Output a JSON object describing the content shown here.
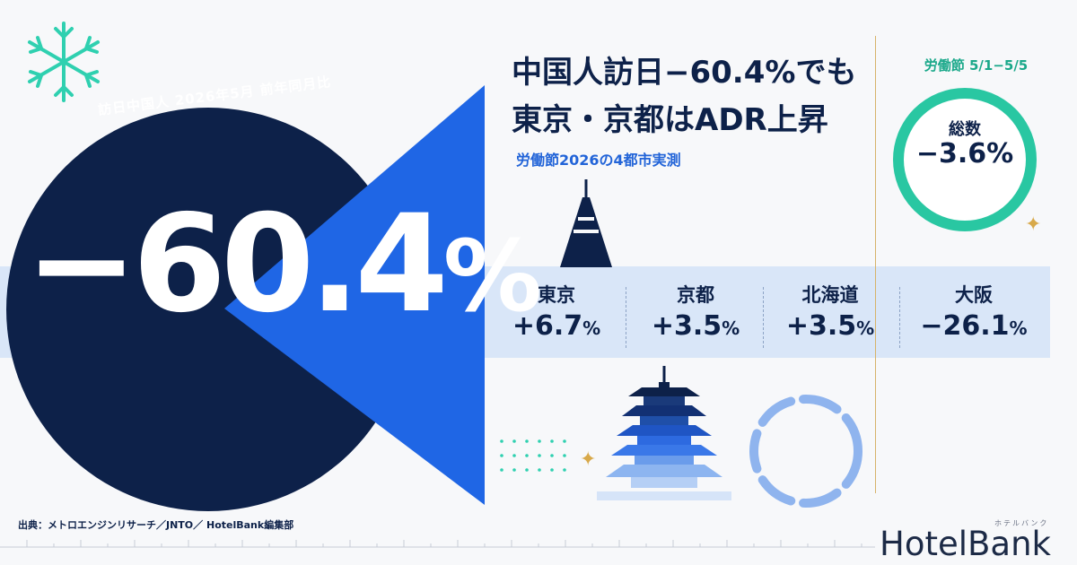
{
  "main": {
    "label": "訪日中国人 2026年5月 前年同月比",
    "value": "−60.4",
    "unit": "%"
  },
  "headline": {
    "line1": "中国人訪日−60.4%でも",
    "line2": "東京・京都はADR上昇",
    "subtitle": "労働節2026の4都市実測"
  },
  "side": {
    "label": "労働節 5/1−5/5",
    "title": "総数",
    "value": "−3.6%"
  },
  "cities": [
    {
      "name": "東京",
      "value": "+6.7",
      "unit": "%"
    },
    {
      "name": "京都",
      "value": "+3.5",
      "unit": "%"
    },
    {
      "name": "北海道",
      "value": "+3.5",
      "unit": "%"
    },
    {
      "name": "大阪",
      "value": "−26.1",
      "unit": "%"
    }
  ],
  "source": "出典：メトロエンジンリサーチ／JNTO／ HotelBank編集部",
  "logo": {
    "brand": "HotelBank",
    "kana": "ホテルバンク"
  },
  "colors": {
    "navy": "#0d2149",
    "blue": "#1f66e5",
    "teal": "#29c7a2",
    "gold": "#d8a94a"
  }
}
